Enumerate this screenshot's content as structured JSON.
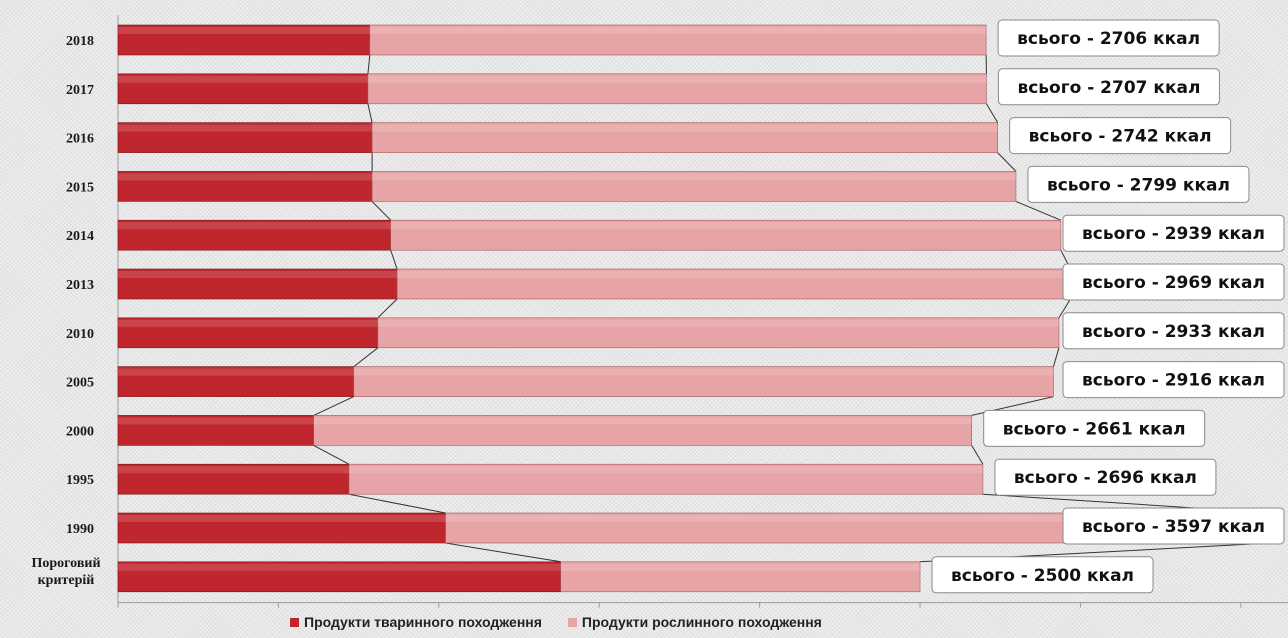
{
  "chart_data": {
    "type": "bar",
    "orientation": "horizontal",
    "stacked": true,
    "categories": [
      "2018",
      "2017",
      "2016",
      "2015",
      "2014",
      "2013",
      "2010",
      "2005",
      "2000",
      "1995",
      "1990",
      "Пороговий критерій"
    ],
    "series": [
      {
        "name": "Продукти тваринного походження",
        "color": "#c0262e",
        "values": [
          785,
          779,
          792,
          792,
          850,
          870,
          810,
          735,
          610,
          720,
          1021,
          1380
        ]
      },
      {
        "name": "Продукти рослинного походження",
        "color": "#e7a4a6",
        "values": [
          1921,
          1928,
          1950,
          2007,
          2089,
          2099,
          2123,
          2181,
          2051,
          1976,
          2576,
          1120
        ]
      }
    ],
    "totals_labels": [
      "всього - 2706 ккал",
      "всього - 2707 ккал",
      "всього - 2742 ккал",
      "всього - 2799 ккал",
      "всього - 2939 ккал",
      "всього - 2969 ккал",
      "всього - 2933 ккал",
      "всього - 2916 ккал",
      "всього - 2661 ккал",
      "всього - 2696 ккал",
      "всього - 3597 ккал",
      "всього - 2500 ккал"
    ],
    "title": "",
    "xlabel": "",
    "ylabel": "",
    "xlim": [
      0,
      3700
    ],
    "legend_position": "bottom",
    "series_lines": true
  }
}
